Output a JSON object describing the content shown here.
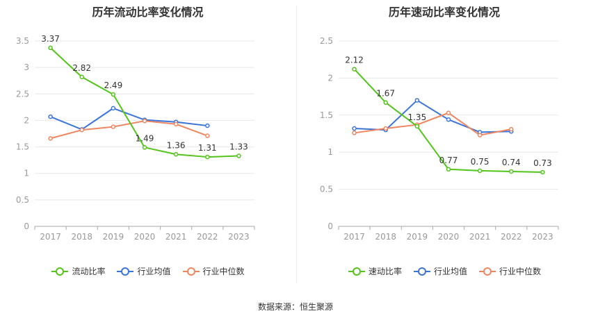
{
  "footer": {
    "source": "数据来源：恒生聚源"
  },
  "colors": {
    "green": "#52c41a",
    "blue": "#3b74db",
    "orange": "#f0855f",
    "grid": "#e8e8e8",
    "axis": "#aaaaaa",
    "tick": "#999999"
  },
  "chart_data": [
    {
      "type": "line",
      "title": "历年流动比率变化情况",
      "categories": [
        "2017",
        "2018",
        "2019",
        "2020",
        "2021",
        "2022",
        "2023"
      ],
      "ylim": [
        0,
        3.5
      ],
      "yticks": [
        "0",
        "0.5",
        "1",
        "1.5",
        "2",
        "2.5",
        "3",
        "3.5"
      ],
      "grid": true,
      "legend_position": "bottom",
      "series": [
        {
          "name": "流动比率",
          "color": "#52c41a",
          "labeled": true,
          "values": [
            3.37,
            2.82,
            2.49,
            1.49,
            1.36,
            1.31,
            1.33
          ],
          "labels": [
            "3.37",
            "2.82",
            "2.49",
            "1.49",
            "1.36",
            "1.31",
            "1.33"
          ]
        },
        {
          "name": "行业均值",
          "color": "#3b74db",
          "labeled": false,
          "values": [
            2.07,
            1.83,
            2.23,
            2.01,
            1.97,
            1.9,
            null
          ]
        },
        {
          "name": "行业中位数",
          "color": "#f0855f",
          "labeled": false,
          "values": [
            1.66,
            1.82,
            1.88,
            1.99,
            1.93,
            1.71,
            null
          ]
        }
      ]
    },
    {
      "type": "line",
      "title": "历年速动比率变化情况",
      "categories": [
        "2017",
        "2018",
        "2019",
        "2020",
        "2021",
        "2022",
        "2023"
      ],
      "ylim": [
        0,
        2.5
      ],
      "yticks": [
        "0",
        "0.5",
        "1",
        "1.5",
        "2",
        "2.5"
      ],
      "grid": true,
      "legend_position": "bottom",
      "series": [
        {
          "name": "速动比率",
          "color": "#52c41a",
          "labeled": true,
          "values": [
            2.12,
            1.67,
            1.35,
            0.77,
            0.75,
            0.74,
            0.73
          ],
          "labels": [
            "2.12",
            "1.67",
            "1.35",
            "0.77",
            "0.75",
            "0.74",
            "0.73"
          ]
        },
        {
          "name": "行业均值",
          "color": "#3b74db",
          "labeled": false,
          "values": [
            1.32,
            1.3,
            1.7,
            1.44,
            1.27,
            1.28,
            null
          ]
        },
        {
          "name": "行业中位数",
          "color": "#f0855f",
          "labeled": false,
          "values": [
            1.26,
            1.32,
            1.37,
            1.53,
            1.23,
            1.31,
            null
          ]
        }
      ]
    }
  ]
}
